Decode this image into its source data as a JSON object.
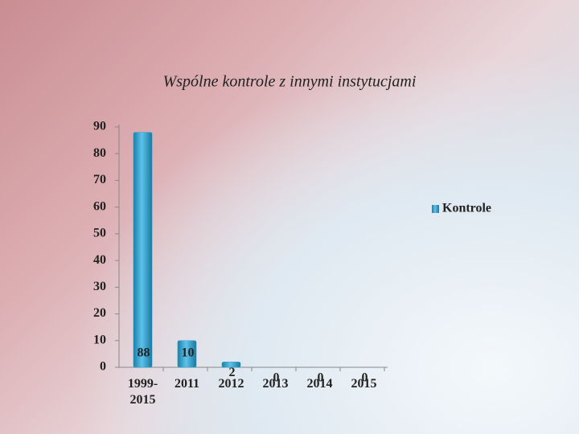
{
  "chart_data": {
    "type": "bar",
    "title": "Wspólne kontrole z innymi instytucjami",
    "categories": [
      "1999-2015",
      "2011",
      "2012",
      "2013",
      "2014",
      "2015"
    ],
    "series": [
      {
        "name": "Kontrole",
        "color": "#2a9fcc",
        "values": [
          88,
          10,
          2,
          0,
          0,
          0
        ]
      }
    ],
    "ylim": [
      0,
      90
    ],
    "yticks": [
      0,
      10,
      20,
      30,
      40,
      50,
      60,
      70,
      80,
      90
    ],
    "grid": false,
    "legend": "right"
  }
}
